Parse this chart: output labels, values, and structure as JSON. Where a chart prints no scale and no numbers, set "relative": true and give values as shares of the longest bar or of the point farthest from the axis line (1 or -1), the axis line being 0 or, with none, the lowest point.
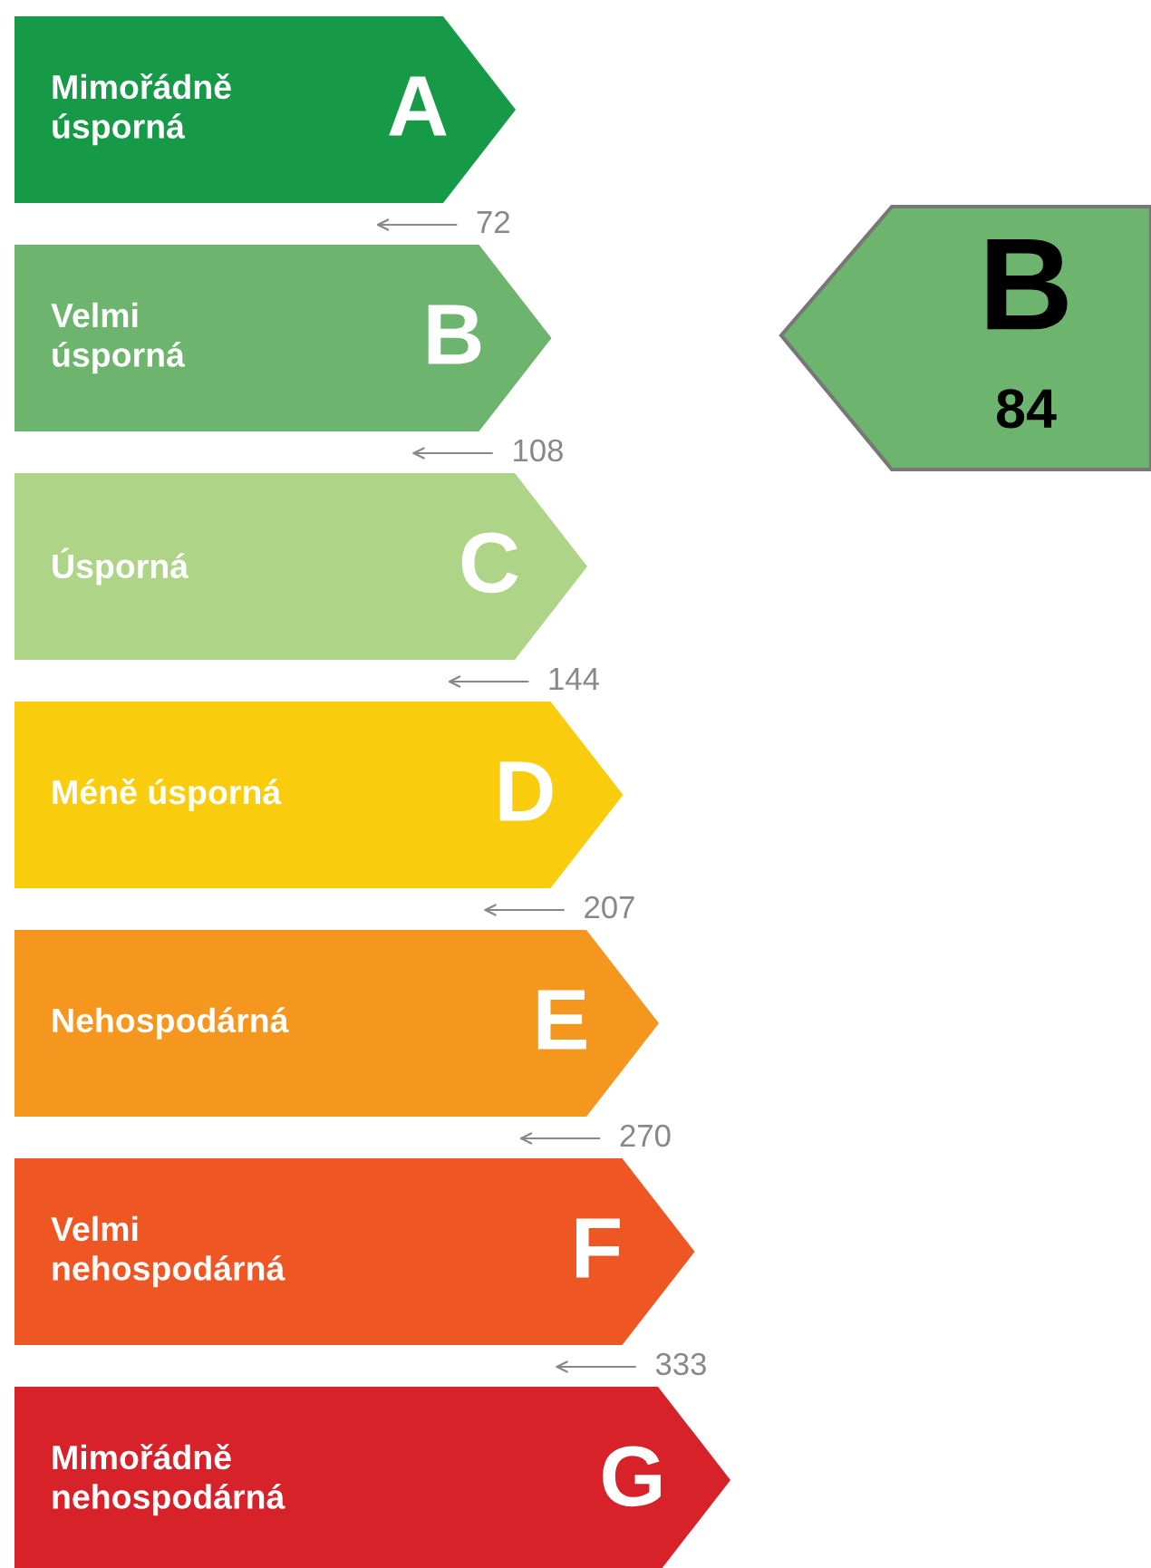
{
  "chart_data": {
    "type": "bar",
    "orientation": "horizontal",
    "relative": true,
    "categories": [
      "A",
      "B",
      "C",
      "D",
      "E",
      "F",
      "G"
    ],
    "colors": [
      "#179a47",
      "#6db46f",
      "#aed487",
      "#f9cc0e",
      "#f5961f",
      "#ee5623",
      "#d7222a"
    ],
    "values": [
      0.7,
      0.75,
      0.8,
      0.85,
      0.9,
      0.95,
      1
    ],
    "annotations": [
      "Mimořádně\núsporná",
      "Velmi\núsporná",
      "Úsporná",
      "Méně úsporná",
      "Nehospodárná",
      "Velmi\nnehospodárná",
      "Mimořádně\nnehospodárná",
      "72",
      "108",
      "144",
      "207",
      "270",
      "333",
      "B",
      "84"
    ]
  }
}
